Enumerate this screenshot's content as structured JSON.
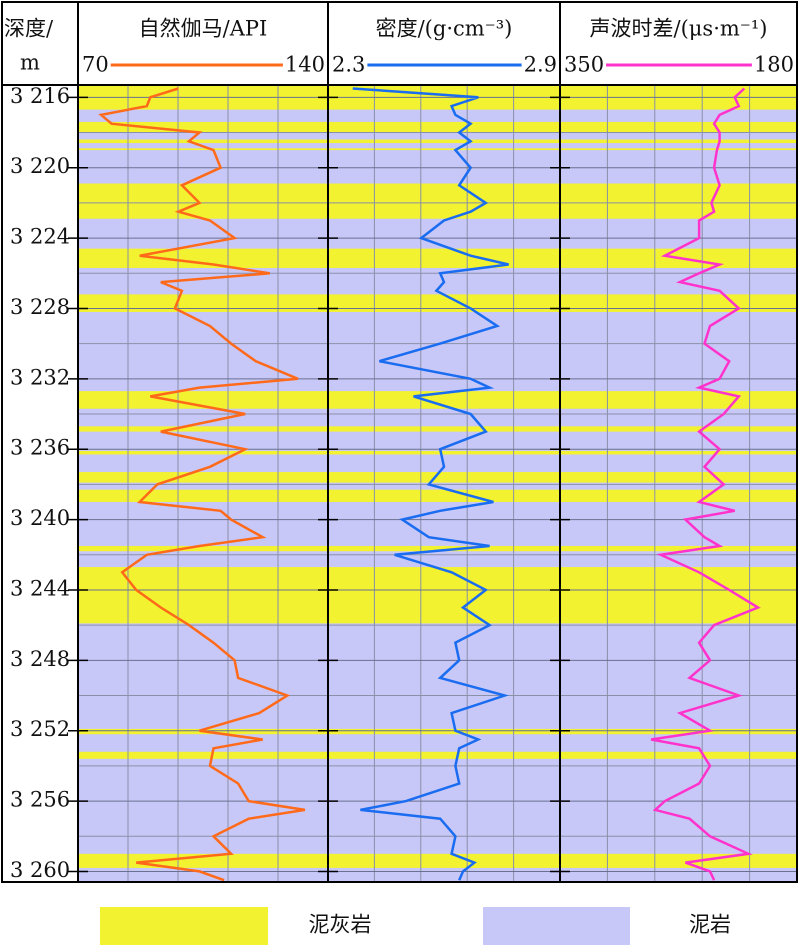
{
  "chart_data": {
    "type": "well_log",
    "depth_title": "深度/",
    "depth_unit": "m",
    "ylim": [
      3215.3,
      3260.6
    ],
    "yticks": [
      {
        "value": 3216,
        "label": "3 216"
      },
      {
        "value": 3220,
        "label": "3 220"
      },
      {
        "value": 3224,
        "label": "3 224"
      },
      {
        "value": 3228,
        "label": "3 228"
      },
      {
        "value": 3232,
        "label": "3 232"
      },
      {
        "value": 3236,
        "label": "3 236"
      },
      {
        "value": 3240,
        "label": "3 240"
      },
      {
        "value": 3244,
        "label": "3 244"
      },
      {
        "value": 3248,
        "label": "3 248"
      },
      {
        "value": 3252,
        "label": "3 252"
      },
      {
        "value": 3256,
        "label": "3 256"
      },
      {
        "value": 3260,
        "label": "3 260"
      }
    ],
    "grid": true,
    "depths": [
      3215.5,
      3216,
      3216.5,
      3217,
      3217.5,
      3218,
      3218.5,
      3219,
      3220,
      3221,
      3222,
      3222.5,
      3223,
      3224,
      3225,
      3225.5,
      3226,
      3226.5,
      3227,
      3228,
      3229,
      3230,
      3231,
      3232,
      3232.5,
      3233,
      3234,
      3235,
      3236,
      3237,
      3238,
      3239,
      3239.5,
      3240,
      3241,
      3241.5,
      3242,
      3243,
      3244,
      3245,
      3246,
      3247,
      3248,
      3249,
      3250,
      3251,
      3252,
      3252.5,
      3253,
      3254,
      3255,
      3256,
      3256.5,
      3257,
      3258,
      3259,
      3259.5,
      3260,
      3260.5
    ],
    "tracks": [
      {
        "name": "自然伽马/API",
        "color": "#ff6a1a",
        "xlim": [
          70,
          140
        ],
        "values": [
          98,
          90,
          89,
          76,
          79,
          104,
          101,
          108,
          110,
          99,
          104,
          98,
          107,
          114,
          87,
          108,
          124,
          93,
          99,
          97,
          107,
          113,
          120,
          132,
          104,
          90,
          117,
          93,
          117,
          107,
          92,
          87,
          110,
          113,
          122,
          104,
          89,
          82,
          86,
          93,
          101,
          108,
          114,
          115,
          129,
          121,
          104,
          122,
          108,
          107,
          115,
          118,
          134,
          118,
          108,
          113,
          86,
          104,
          111
        ]
      },
      {
        "name": "密度/(g·cm⁻³)",
        "color": "#1a6cf0",
        "xlim": [
          2.3,
          2.9
        ],
        "values": [
          2.36,
          2.69,
          2.62,
          2.63,
          2.67,
          2.64,
          2.67,
          2.63,
          2.67,
          2.64,
          2.71,
          2.67,
          2.6,
          2.54,
          2.67,
          2.77,
          2.59,
          2.6,
          2.58,
          2.67,
          2.74,
          2.59,
          2.43,
          2.67,
          2.72,
          2.52,
          2.67,
          2.71,
          2.59,
          2.6,
          2.56,
          2.73,
          2.59,
          2.49,
          2.56,
          2.72,
          2.47,
          2.62,
          2.71,
          2.65,
          2.72,
          2.63,
          2.64,
          2.59,
          2.76,
          2.62,
          2.63,
          2.69,
          2.64,
          2.63,
          2.64,
          2.5,
          2.38,
          2.59,
          2.63,
          2.62,
          2.68,
          2.65,
          2.64
        ]
      },
      {
        "name": "声波时差/(μs·m⁻¹)",
        "color": "#ff33cc",
        "xlim": [
          350,
          180
        ],
        "values": [
          217,
          224,
          221,
          235,
          239,
          235,
          235,
          237,
          239,
          235,
          241,
          239,
          250,
          250,
          275,
          235,
          250,
          264,
          235,
          221,
          242,
          246,
          228,
          235,
          250,
          221,
          232,
          250,
          235,
          246,
          232,
          250,
          224,
          260,
          246,
          235,
          278,
          250,
          228,
          207,
          239,
          250,
          242,
          257,
          221,
          264,
          242,
          285,
          250,
          242,
          250,
          275,
          282,
          257,
          242,
          214,
          260,
          242,
          239
        ]
      }
    ],
    "lithology": [
      {
        "name": "泥灰岩",
        "color": "#f2f230",
        "intervals": [
          [
            3215.3,
            3216.7
          ],
          [
            3217.4,
            3218.0
          ],
          [
            3218.4,
            3218.6
          ],
          [
            3218.9,
            3219.0
          ],
          [
            3220.9,
            3222.9
          ],
          [
            3224.6,
            3225.7
          ],
          [
            3227.2,
            3228.2
          ],
          [
            3232.7,
            3233.7
          ],
          [
            3234.7,
            3235.0
          ],
          [
            3236.1,
            3236.3
          ],
          [
            3237.3,
            3237.9
          ],
          [
            3238.3,
            3239.0
          ],
          [
            3241.5,
            3241.8
          ],
          [
            3242.7,
            3245.9
          ],
          [
            3251.9,
            3252.2
          ],
          [
            3253.2,
            3253.6
          ],
          [
            3259.0,
            3259.8
          ]
        ]
      },
      {
        "name": "泥岩",
        "color": "#c8c8f8"
      }
    ]
  }
}
